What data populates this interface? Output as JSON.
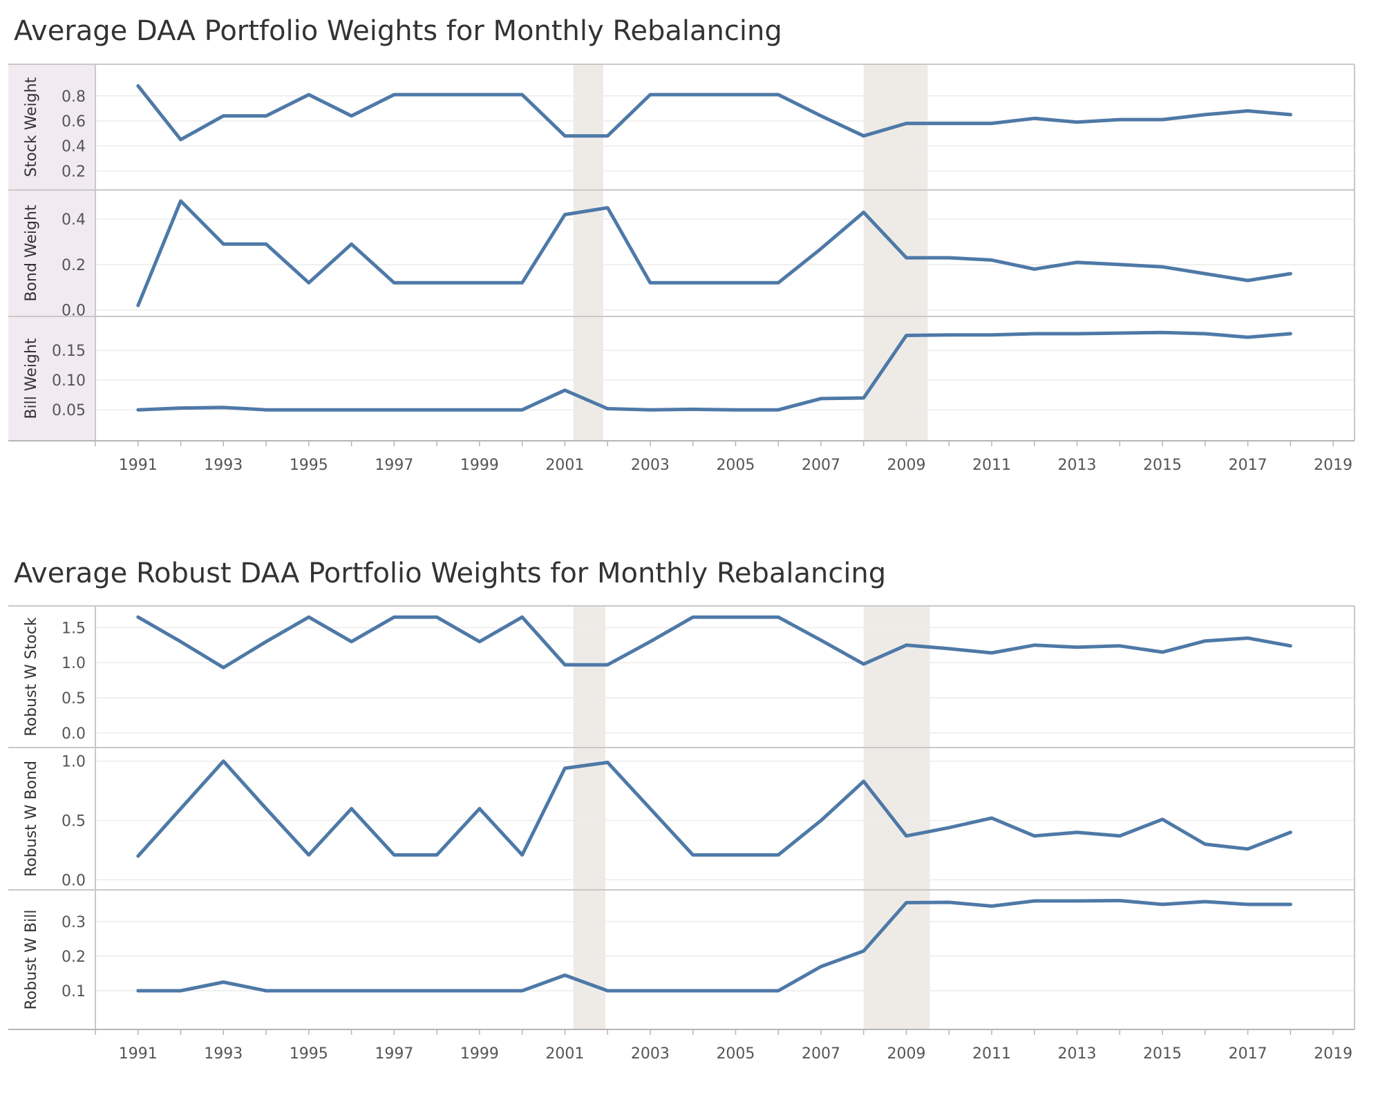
{
  "colors": {
    "line": "#4e79a7",
    "shade": "#eeebe7",
    "grid": "#ececec",
    "border": "#c8c8c8",
    "label_band": "#f1ebf1"
  },
  "chart_data": [
    {
      "type": "line",
      "title": "Average DAA Portfolio Weights for Monthly Rebalancing",
      "x": [
        1991,
        1992,
        1993,
        1994,
        1995,
        1996,
        1997,
        1998,
        1999,
        2000,
        2001,
        2002,
        2003,
        2004,
        2005,
        2006,
        2007,
        2008,
        2009,
        2010,
        2011,
        2012,
        2013,
        2014,
        2015,
        2016,
        2017,
        2018
      ],
      "x_ticks": [
        "1991",
        "1993",
        "1995",
        "1997",
        "1999",
        "2001",
        "2003",
        "2005",
        "2007",
        "2009",
        "2011",
        "2013",
        "2015",
        "2017",
        "2019"
      ],
      "xlim": [
        1990,
        2019.5
      ],
      "shaded_periods": [
        [
          2001.2,
          2001.9
        ],
        [
          2008,
          2009.5
        ]
      ],
      "panels": [
        {
          "ylabel": "Stock Weight",
          "ylim": [
            0.08,
            1.02
          ],
          "y_ticks": [
            "0.2",
            "0.4",
            "0.6",
            "0.8"
          ],
          "y_tick_values": [
            0.2,
            0.4,
            0.6,
            0.8
          ],
          "values": [
            0.88,
            0.45,
            0.64,
            0.64,
            0.81,
            0.64,
            0.81,
            0.81,
            0.81,
            0.81,
            0.48,
            0.48,
            0.81,
            0.81,
            0.81,
            0.81,
            0.64,
            0.48,
            0.58,
            0.58,
            0.58,
            0.62,
            0.59,
            0.61,
            0.61,
            0.65,
            0.68,
            0.65
          ]
        },
        {
          "ylabel": "Bond Weight",
          "ylim": [
            -0.01,
            0.51
          ],
          "y_ticks": [
            "0.0",
            "0.2",
            "0.4"
          ],
          "y_tick_values": [
            0.0,
            0.2,
            0.4
          ],
          "values": [
            0.02,
            0.48,
            0.29,
            0.29,
            0.12,
            0.29,
            0.12,
            0.12,
            0.12,
            0.12,
            0.42,
            0.45,
            0.12,
            0.12,
            0.12,
            0.12,
            0.27,
            0.43,
            0.23,
            0.23,
            0.22,
            0.18,
            0.21,
            0.2,
            0.19,
            0.16,
            0.13,
            0.16
          ]
        },
        {
          "ylabel": "Bill Weight",
          "ylim": [
            0.005,
            0.2
          ],
          "y_ticks": [
            "0.05",
            "0.10",
            "0.15"
          ],
          "y_tick_values": [
            0.05,
            0.1,
            0.15
          ],
          "values": [
            0.05,
            0.053,
            0.054,
            0.05,
            0.05,
            0.05,
            0.05,
            0.05,
            0.05,
            0.05,
            0.083,
            0.052,
            0.05,
            0.051,
            0.05,
            0.05,
            0.069,
            0.07,
            0.175,
            0.176,
            0.176,
            0.178,
            0.178,
            0.179,
            0.18,
            0.178,
            0.172,
            0.178
          ]
        }
      ]
    },
    {
      "type": "line",
      "title": "Average Robust DAA Portfolio Weights for Monthly Rebalancing",
      "x": [
        1991,
        1992,
        1993,
        1994,
        1995,
        1996,
        1997,
        1998,
        1999,
        2000,
        2001,
        2002,
        2003,
        2004,
        2005,
        2006,
        2007,
        2008,
        2009,
        2010,
        2011,
        2012,
        2013,
        2014,
        2015,
        2016,
        2017,
        2018
      ],
      "x_ticks": [
        "1991",
        "1993",
        "1995",
        "1997",
        "1999",
        "2001",
        "2003",
        "2005",
        "2007",
        "2009",
        "2011",
        "2013",
        "2015",
        "2017",
        "2019"
      ],
      "xlim": [
        1990,
        2019.5
      ],
      "shaded_periods": [
        [
          2001.2,
          2001.95
        ],
        [
          2008,
          2009.55
        ]
      ],
      "panels": [
        {
          "ylabel": "Robust W Stock",
          "ylim": [
            -0.15,
            1.75
          ],
          "y_ticks": [
            "0.0",
            "0.5",
            "1.0",
            "1.5"
          ],
          "y_tick_values": [
            0.0,
            0.5,
            1.0,
            1.5
          ],
          "values": [
            1.65,
            1.3,
            0.93,
            1.3,
            1.65,
            1.3,
            1.65,
            1.65,
            1.3,
            1.65,
            0.97,
            0.97,
            1.3,
            1.65,
            1.65,
            1.65,
            1.32,
            0.98,
            1.25,
            1.2,
            1.14,
            1.25,
            1.22,
            1.24,
            1.15,
            1.31,
            1.35,
            1.24
          ]
        },
        {
          "ylabel": "Robust W Bond",
          "ylim": [
            -0.05,
            1.08
          ],
          "y_ticks": [
            "0.0",
            "0.5",
            "1.0"
          ],
          "y_tick_values": [
            0.0,
            0.5,
            1.0
          ],
          "values": [
            0.2,
            0.6,
            1.0,
            0.6,
            0.21,
            0.6,
            0.21,
            0.21,
            0.6,
            0.21,
            0.94,
            0.99,
            0.6,
            0.21,
            0.21,
            0.21,
            0.5,
            0.83,
            0.37,
            0.44,
            0.52,
            0.37,
            0.4,
            0.37,
            0.51,
            0.3,
            0.26,
            0.4
          ]
        },
        {
          "ylabel": "Robust W Bill",
          "ylim": [
            0.0,
            0.38
          ],
          "y_ticks": [
            "0.1",
            "0.2",
            "0.3"
          ],
          "y_tick_values": [
            0.1,
            0.2,
            0.3
          ],
          "values": [
            0.1,
            0.1,
            0.125,
            0.1,
            0.1,
            0.1,
            0.1,
            0.1,
            0.1,
            0.1,
            0.145,
            0.1,
            0.1,
            0.1,
            0.1,
            0.1,
            0.17,
            0.215,
            0.355,
            0.356,
            0.345,
            0.36,
            0.36,
            0.361,
            0.35,
            0.358,
            0.35,
            0.35
          ]
        }
      ]
    }
  ]
}
